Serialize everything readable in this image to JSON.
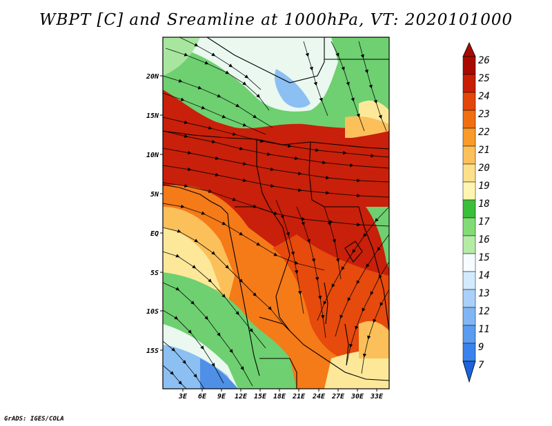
{
  "title": "WBPT [C] and Sreamline at 1000hPa, VT: 2020101000",
  "credit": "GrADS: IGES/COLA",
  "latitude_labels": [
    "20N",
    "15N",
    "10N",
    "5N",
    "EQ",
    "5S",
    "10S",
    "15S"
  ],
  "longitude_labels": [
    "3E",
    "6E",
    "9E",
    "12E",
    "15E",
    "18E",
    "21E",
    "24E",
    "27E",
    "30E",
    "33E"
  ],
  "colorbar": {
    "labels": [
      "7",
      "9",
      "11",
      "12",
      "13",
      "14",
      "15",
      "16",
      "17",
      "18",
      "19",
      "20",
      "21",
      "22",
      "23",
      "24",
      "25",
      "26"
    ],
    "colors": [
      "#1c64dc",
      "#3a82ec",
      "#5a9cf0",
      "#80b6f4",
      "#a8d0f8",
      "#d2eafc",
      "#f6fcff",
      "#b4eca6",
      "#82dc76",
      "#3cbe3a",
      "#fff5b0",
      "#fde08a",
      "#fcc05c",
      "#fa9a28",
      "#f06e12",
      "#e34608",
      "#c81e04",
      "#a80a02"
    ]
  },
  "field_colors": {
    "hot": "#c8200a",
    "warm": "#e64a0c",
    "orange": "#f57a18",
    "tan": "#fbc05a",
    "cream": "#fde89a",
    "green": "#6ed070",
    "lightgreen": "#a8e6a0",
    "pale": "#eaf8f0",
    "blue": "#8cc0f2",
    "darkblue": "#4f8fe6"
  }
}
